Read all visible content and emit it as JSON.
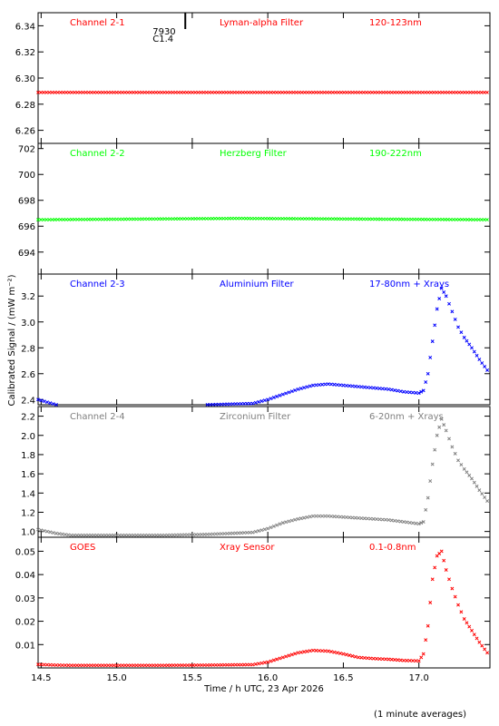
{
  "chart_data": {
    "type": "scatter",
    "xlabel": "Time / h UTC, 23 Apr 2026",
    "ylabel": "Calibrated Signal / (mW m⁻²)",
    "xlim": [
      14.48,
      17.47
    ],
    "x_ticks": [
      "14.5",
      "15.0",
      "15.5",
      "16.0",
      "16.5",
      "17.0"
    ],
    "x_tick_values": [
      14.5,
      15.0,
      15.5,
      16.0,
      16.5,
      17.0
    ],
    "footnote": "(1 minute averages)",
    "flare_marker": {
      "x": 15.4,
      "labels": [
        "7930",
        "C1.4"
      ]
    },
    "panels": [
      {
        "name": "Channel 2-1",
        "filter": "Lyman-alpha Filter",
        "band": "120-123nm",
        "color": "#ff0000",
        "ylim": [
          6.25,
          6.35
        ],
        "y_ticks": [
          "6.26",
          "6.28",
          "6.30",
          "6.32",
          "6.34"
        ],
        "y_tick_values": [
          6.26,
          6.28,
          6.3,
          6.32,
          6.34
        ],
        "series": [
          {
            "x": [
              14.48,
              17.47
            ],
            "y": [
              6.289,
              6.289
            ]
          }
        ]
      },
      {
        "name": "Channel 2-2",
        "filter": "Herzberg Filter",
        "band": "190-222nm",
        "color": "#00ff00",
        "ylim": [
          692.3,
          702.4
        ],
        "y_ticks": [
          "694",
          "696",
          "698",
          "700",
          "702"
        ],
        "y_tick_values": [
          694,
          696,
          698,
          700,
          702
        ],
        "series": [
          {
            "x": [
              14.48,
              15.8,
              17.47
            ],
            "y": [
              696.5,
              696.6,
              696.5
            ]
          }
        ]
      },
      {
        "name": "Channel 2-3",
        "filter": "Aluminium Filter",
        "band": "17-80nm + Xrays",
        "color": "#0000ff",
        "ylim": [
          2.36,
          3.37
        ],
        "y_ticks": [
          "2.4",
          "2.6",
          "2.8",
          "3.0",
          "3.2"
        ],
        "y_tick_values": [
          2.4,
          2.6,
          2.8,
          3.0,
          3.2
        ],
        "series": [
          {
            "x": [
              14.48,
              14.6,
              14.7,
              15.0,
              15.3,
              15.6,
              15.9,
              16.0,
              16.1,
              16.2,
              16.3,
              16.4,
              16.5,
              16.6,
              16.7,
              16.8,
              16.9,
              17.0,
              17.03,
              17.06,
              17.09,
              17.12,
              17.15,
              17.18,
              17.22,
              17.26,
              17.3,
              17.35,
              17.4,
              17.47
            ],
            "y": [
              2.4,
              2.36,
              2.35,
              2.35,
              2.35,
              2.36,
              2.37,
              2.4,
              2.44,
              2.48,
              2.51,
              2.52,
              2.51,
              2.5,
              2.49,
              2.48,
              2.46,
              2.45,
              2.47,
              2.6,
              2.85,
              3.1,
              3.26,
              3.2,
              3.08,
              2.96,
              2.88,
              2.8,
              2.71,
              2.6
            ]
          }
        ]
      },
      {
        "name": "Channel 2-4",
        "filter": "Zirconium Filter",
        "band": "6-20nm + Xrays",
        "color": "#808080",
        "ylim": [
          0.94,
          2.3
        ],
        "y_ticks": [
          "1.0",
          "1.2",
          "1.4",
          "1.6",
          "1.8",
          "2.0",
          "2.2"
        ],
        "y_tick_values": [
          1.0,
          1.2,
          1.4,
          1.6,
          1.8,
          2.0,
          2.2
        ],
        "series": [
          {
            "x": [
              14.48,
              14.6,
              14.7,
              15.0,
              15.3,
              15.6,
              15.9,
              16.0,
              16.1,
              16.2,
              16.3,
              16.4,
              16.5,
              16.6,
              16.7,
              16.8,
              16.9,
              17.0,
              17.03,
              17.06,
              17.09,
              17.12,
              17.15,
              17.18,
              17.22,
              17.26,
              17.3,
              17.35,
              17.4,
              17.47
            ],
            "y": [
              1.02,
              0.98,
              0.96,
              0.96,
              0.96,
              0.97,
              0.99,
              1.03,
              1.09,
              1.13,
              1.16,
              1.16,
              1.15,
              1.14,
              1.13,
              1.12,
              1.1,
              1.08,
              1.1,
              1.35,
              1.7,
              2.0,
              2.17,
              2.05,
              1.88,
              1.74,
              1.65,
              1.55,
              1.43,
              1.28
            ]
          }
        ]
      },
      {
        "name": "GOES",
        "filter": "Xray Sensor",
        "band": "0.1-0.8nm",
        "color": "#ff0000",
        "ylim": [
          0.0,
          0.056
        ],
        "y_ticks": [
          "0.01",
          "0.02",
          "0.03",
          "0.04",
          "0.05"
        ],
        "y_tick_values": [
          0.01,
          0.02,
          0.03,
          0.04,
          0.05
        ],
        "series": [
          {
            "x": [
              14.48,
              14.6,
              14.7,
              15.0,
              15.3,
              15.6,
              15.9,
              16.0,
              16.1,
              16.2,
              16.3,
              16.4,
              16.5,
              16.6,
              16.7,
              16.8,
              16.9,
              17.0,
              17.03,
              17.06,
              17.09,
              17.12,
              17.15,
              17.18,
              17.22,
              17.26,
              17.3,
              17.35,
              17.4,
              17.47
            ],
            "y": [
              0.0015,
              0.0012,
              0.0011,
              0.0011,
              0.0011,
              0.0012,
              0.0014,
              0.0025,
              0.0045,
              0.0065,
              0.0075,
              0.0072,
              0.006,
              0.0045,
              0.004,
              0.0037,
              0.0032,
              0.003,
              0.006,
              0.018,
              0.038,
              0.048,
              0.05,
              0.042,
              0.034,
              0.027,
              0.021,
              0.016,
              0.011,
              0.005
            ]
          }
        ]
      }
    ]
  }
}
